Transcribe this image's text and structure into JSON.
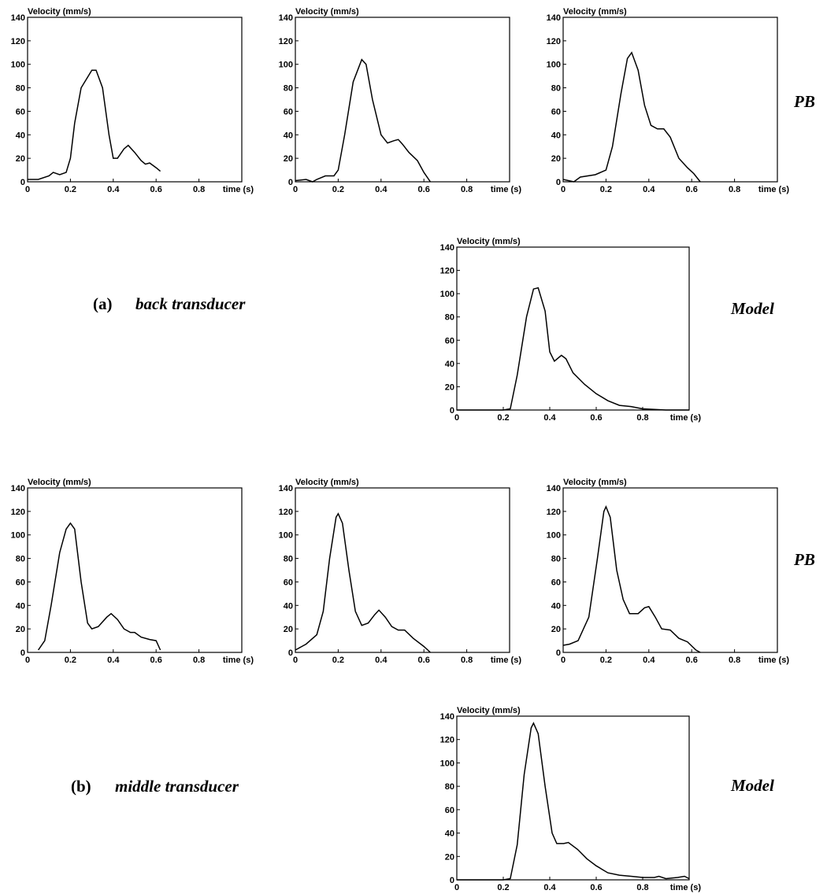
{
  "chart_data": [
    {
      "type": "line",
      "y_label": "Velocity (mm/s)",
      "x_label": "time (s)",
      "color": "#000000",
      "xlim": [
        0,
        1
      ],
      "ylim": [
        0,
        140
      ],
      "xticks": [
        0,
        0.2,
        0.4,
        0.6,
        0.8
      ],
      "yticks": [
        0,
        20,
        40,
        60,
        80,
        100,
        120,
        140
      ],
      "x": [
        0,
        0.05,
        0.1,
        0.12,
        0.15,
        0.18,
        0.2,
        0.22,
        0.25,
        0.3,
        0.32,
        0.35,
        0.38,
        0.4,
        0.42,
        0.45,
        0.47,
        0.5,
        0.53,
        0.55,
        0.57,
        0.6,
        0.62
      ],
      "values": [
        2,
        2,
        5,
        8,
        6,
        8,
        20,
        50,
        80,
        95,
        95,
        80,
        40,
        20,
        20,
        28,
        31,
        25,
        18,
        15,
        16,
        12,
        9
      ]
    },
    {
      "type": "line",
      "y_label": "Velocity (mm/s)",
      "x_label": "time (s)",
      "color": "#000000",
      "xlim": [
        0,
        1
      ],
      "ylim": [
        0,
        140
      ],
      "xticks": [
        0,
        0.2,
        0.4,
        0.6,
        0.8
      ],
      "yticks": [
        0,
        20,
        40,
        60,
        80,
        100,
        120,
        140
      ],
      "x": [
        0,
        0.05,
        0.08,
        0.1,
        0.14,
        0.18,
        0.2,
        0.23,
        0.27,
        0.31,
        0.33,
        0.36,
        0.4,
        0.43,
        0.46,
        0.48,
        0.5,
        0.53,
        0.57,
        0.6,
        0.63
      ],
      "values": [
        1,
        2,
        0,
        2,
        5,
        5,
        10,
        40,
        85,
        104,
        100,
        70,
        40,
        33,
        35,
        36,
        32,
        25,
        18,
        8,
        0
      ]
    },
    {
      "type": "line",
      "y_label": "Velocity (mm/s)",
      "x_label": "time (s)",
      "color": "#000000",
      "xlim": [
        0,
        1
      ],
      "ylim": [
        0,
        140
      ],
      "xticks": [
        0,
        0.2,
        0.4,
        0.6,
        0.8
      ],
      "yticks": [
        0,
        20,
        40,
        60,
        80,
        100,
        120,
        140
      ],
      "x": [
        0,
        0.05,
        0.08,
        0.15,
        0.2,
        0.23,
        0.27,
        0.3,
        0.32,
        0.35,
        0.38,
        0.41,
        0.44,
        0.47,
        0.5,
        0.54,
        0.58,
        0.61,
        0.64
      ],
      "values": [
        2,
        0,
        4,
        6,
        10,
        30,
        75,
        105,
        110,
        95,
        65,
        48,
        45,
        45,
        38,
        20,
        12,
        7,
        0
      ]
    },
    {
      "type": "line",
      "y_label": "Velocity (mm/s)",
      "x_label": "time (s)",
      "color": "#000000",
      "xlim": [
        0,
        1
      ],
      "ylim": [
        0,
        140
      ],
      "xticks": [
        0,
        0.2,
        0.4,
        0.6,
        0.8
      ],
      "yticks": [
        0,
        20,
        40,
        60,
        80,
        100,
        120,
        140
      ],
      "x": [
        0,
        0.2,
        0.23,
        0.26,
        0.3,
        0.33,
        0.35,
        0.38,
        0.4,
        0.42,
        0.45,
        0.47,
        0.5,
        0.55,
        0.6,
        0.65,
        0.7,
        0.75,
        0.8,
        0.9,
        1
      ],
      "values": [
        0,
        0,
        1,
        30,
        80,
        104,
        105,
        85,
        50,
        42,
        47,
        44,
        32,
        22,
        14,
        8,
        4,
        3,
        1,
        0,
        0
      ]
    },
    {
      "type": "line",
      "y_label": "Velocity (mm/s)",
      "x_label": "time (s)",
      "color": "#000000",
      "xlim": [
        0,
        1
      ],
      "ylim": [
        0,
        140
      ],
      "xticks": [
        0,
        0.2,
        0.4,
        0.6,
        0.8
      ],
      "yticks": [
        0,
        20,
        40,
        60,
        80,
        100,
        120,
        140
      ],
      "x": [
        0.05,
        0.08,
        0.11,
        0.15,
        0.18,
        0.2,
        0.22,
        0.25,
        0.28,
        0.3,
        0.33,
        0.37,
        0.39,
        0.42,
        0.45,
        0.48,
        0.5,
        0.53,
        0.57,
        0.6,
        0.62
      ],
      "values": [
        2,
        10,
        40,
        85,
        105,
        110,
        105,
        60,
        25,
        20,
        22,
        30,
        33,
        28,
        20,
        17,
        17,
        13,
        11,
        10,
        2
      ]
    },
    {
      "type": "line",
      "y_label": "Velocity (mm/s)",
      "x_label": "time (s)",
      "color": "#000000",
      "xlim": [
        0,
        1
      ],
      "ylim": [
        0,
        140
      ],
      "xticks": [
        0,
        0.2,
        0.4,
        0.6,
        0.8
      ],
      "yticks": [
        0,
        20,
        40,
        60,
        80,
        100,
        120,
        140
      ],
      "x": [
        0,
        0.05,
        0.1,
        0.13,
        0.16,
        0.19,
        0.2,
        0.22,
        0.25,
        0.28,
        0.31,
        0.34,
        0.37,
        0.39,
        0.42,
        0.45,
        0.48,
        0.51,
        0.55,
        0.6,
        0.63
      ],
      "values": [
        2,
        7,
        15,
        35,
        80,
        115,
        118,
        110,
        70,
        35,
        23,
        25,
        32,
        36,
        30,
        22,
        19,
        19,
        12,
        5,
        0
      ]
    },
    {
      "type": "line",
      "y_label": "Velocity (mm/s)",
      "x_label": "time (s)",
      "color": "#000000",
      "xlim": [
        0,
        1
      ],
      "ylim": [
        0,
        140
      ],
      "xticks": [
        0,
        0.2,
        0.4,
        0.6,
        0.8
      ],
      "yticks": [
        0,
        20,
        40,
        60,
        80,
        100,
        120,
        140
      ],
      "x": [
        0,
        0.03,
        0.07,
        0.12,
        0.16,
        0.19,
        0.2,
        0.22,
        0.25,
        0.28,
        0.31,
        0.35,
        0.38,
        0.4,
        0.43,
        0.46,
        0.5,
        0.54,
        0.58,
        0.62,
        0.64
      ],
      "values": [
        6,
        7,
        10,
        30,
        80,
        120,
        124,
        115,
        70,
        45,
        33,
        33,
        38,
        39,
        30,
        20,
        19,
        12,
        9,
        2,
        0
      ]
    },
    {
      "type": "line",
      "y_label": "Velocity (mm/s)",
      "x_label": "time (s)",
      "color": "#000000",
      "xlim": [
        0,
        1
      ],
      "ylim": [
        0,
        140
      ],
      "xticks": [
        0,
        0.2,
        0.4,
        0.6,
        0.8
      ],
      "yticks": [
        0,
        20,
        40,
        60,
        80,
        100,
        120,
        140
      ],
      "x": [
        0,
        0.1,
        0.2,
        0.23,
        0.26,
        0.29,
        0.32,
        0.33,
        0.35,
        0.38,
        0.41,
        0.43,
        0.46,
        0.48,
        0.52,
        0.56,
        0.6,
        0.65,
        0.7,
        0.75,
        0.8,
        0.85,
        0.87,
        0.9,
        0.95,
        0.98,
        1
      ],
      "values": [
        0,
        0,
        0,
        1,
        30,
        90,
        130,
        134,
        125,
        80,
        40,
        31,
        31,
        32,
        26,
        18,
        12,
        6,
        4,
        3,
        2,
        2,
        3,
        1,
        2,
        3,
        1
      ]
    }
  ],
  "row_labels": [
    "PB",
    "Model",
    "PB",
    "Model"
  ],
  "panel_labels": [
    {
      "letter": "(a)",
      "name": "back transducer"
    },
    {
      "letter": "(b)",
      "name": "middle transducer"
    }
  ]
}
